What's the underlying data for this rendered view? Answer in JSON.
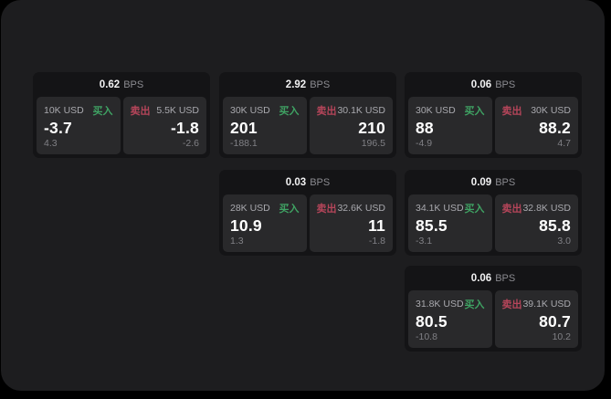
{
  "labels": {
    "bps_unit": "BPS",
    "buy": "买入",
    "sell": "卖出"
  },
  "colors": {
    "background": "#000000",
    "panel": "#1d1d1f",
    "card": "#141416",
    "tile": "#29292b",
    "buy_green": "#3fa263",
    "sell_red": "#b5455a",
    "value_white": "#ffffff",
    "muted_gray": "#808085"
  },
  "cards": [
    {
      "bps": "0.62",
      "buy": {
        "amount": "10K USD",
        "value": "-3.7",
        "sub": "4.3"
      },
      "sell": {
        "amount": "5.5K USD",
        "value": "-1.8",
        "sub": "-2.6"
      }
    },
    {
      "bps": "2.92",
      "buy": {
        "amount": "30K USD",
        "value": "201",
        "sub": "-188.1"
      },
      "sell": {
        "amount": "30.1K USD",
        "value": "210",
        "sub": "196.5"
      }
    },
    {
      "bps": "0.06",
      "buy": {
        "amount": "30K USD",
        "value": "88",
        "sub": "-4.9"
      },
      "sell": {
        "amount": "30K USD",
        "value": "88.2",
        "sub": "4.7"
      }
    },
    {
      "bps": "0.03",
      "buy": {
        "amount": "28K USD",
        "value": "10.9",
        "sub": "1.3"
      },
      "sell": {
        "amount": "32.6K USD",
        "value": "11",
        "sub": "-1.8"
      }
    },
    {
      "bps": "0.09",
      "buy": {
        "amount": "34.1K USD",
        "value": "85.5",
        "sub": "-3.1"
      },
      "sell": {
        "amount": "32.8K USD",
        "value": "85.8",
        "sub": "3.0"
      }
    },
    {
      "bps": "0.06",
      "buy": {
        "amount": "31.8K USD",
        "value": "80.5",
        "sub": "-10.8"
      },
      "sell": {
        "amount": "39.1K USD",
        "value": "80.7",
        "sub": "10.2"
      }
    }
  ]
}
